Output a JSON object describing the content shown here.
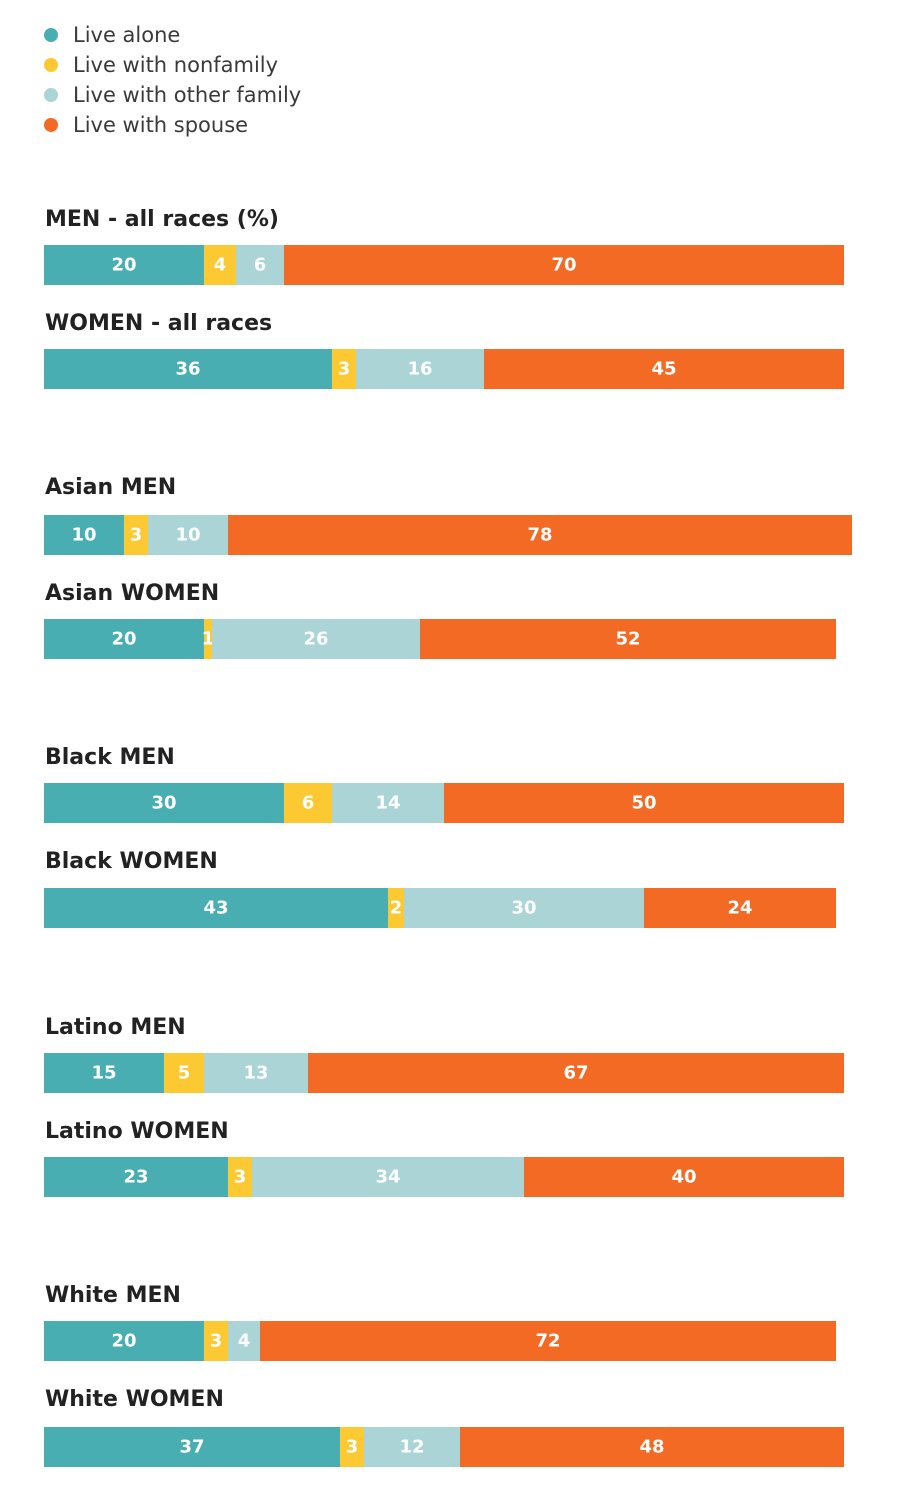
{
  "colors": {
    "live_alone": "#48aeb1",
    "live_with_nonfamily": "#fcc932",
    "live_with_other_family": "#abd4d6",
    "live_with_spouse": "#f26a24"
  },
  "chart_data": {
    "type": "bar",
    "orientation": "horizontal",
    "stacked": true,
    "units": "%",
    "legend_position": "top-left",
    "legend": [
      {
        "key": "live_alone",
        "label": "Live alone"
      },
      {
        "key": "live_with_nonfamily",
        "label": "Live with nonfamily"
      },
      {
        "key": "live_with_other_family",
        "label": "Live with other family"
      },
      {
        "key": "live_with_spouse",
        "label": "Live with spouse"
      }
    ],
    "rows": [
      {
        "label": "MEN - all races (%)",
        "values": [
          20,
          4,
          6,
          70
        ]
      },
      {
        "label": "WOMEN - all races",
        "values": [
          36,
          3,
          16,
          45
        ]
      },
      {
        "label": "Asian MEN",
        "values": [
          10,
          3,
          10,
          78
        ]
      },
      {
        "label": "Asian WOMEN",
        "values": [
          20,
          1,
          26,
          52
        ]
      },
      {
        "label": "Black MEN",
        "values": [
          30,
          6,
          14,
          50
        ]
      },
      {
        "label": "Black WOMEN",
        "values": [
          43,
          2,
          30,
          24
        ]
      },
      {
        "label": "Latino MEN",
        "values": [
          15,
          5,
          13,
          67
        ]
      },
      {
        "label": "Latino WOMEN",
        "values": [
          23,
          3,
          34,
          40
        ]
      },
      {
        "label": "White MEN",
        "values": [
          20,
          3,
          4,
          72
        ]
      },
      {
        "label": "White WOMEN",
        "values": [
          37,
          3,
          12,
          48
        ]
      }
    ]
  }
}
